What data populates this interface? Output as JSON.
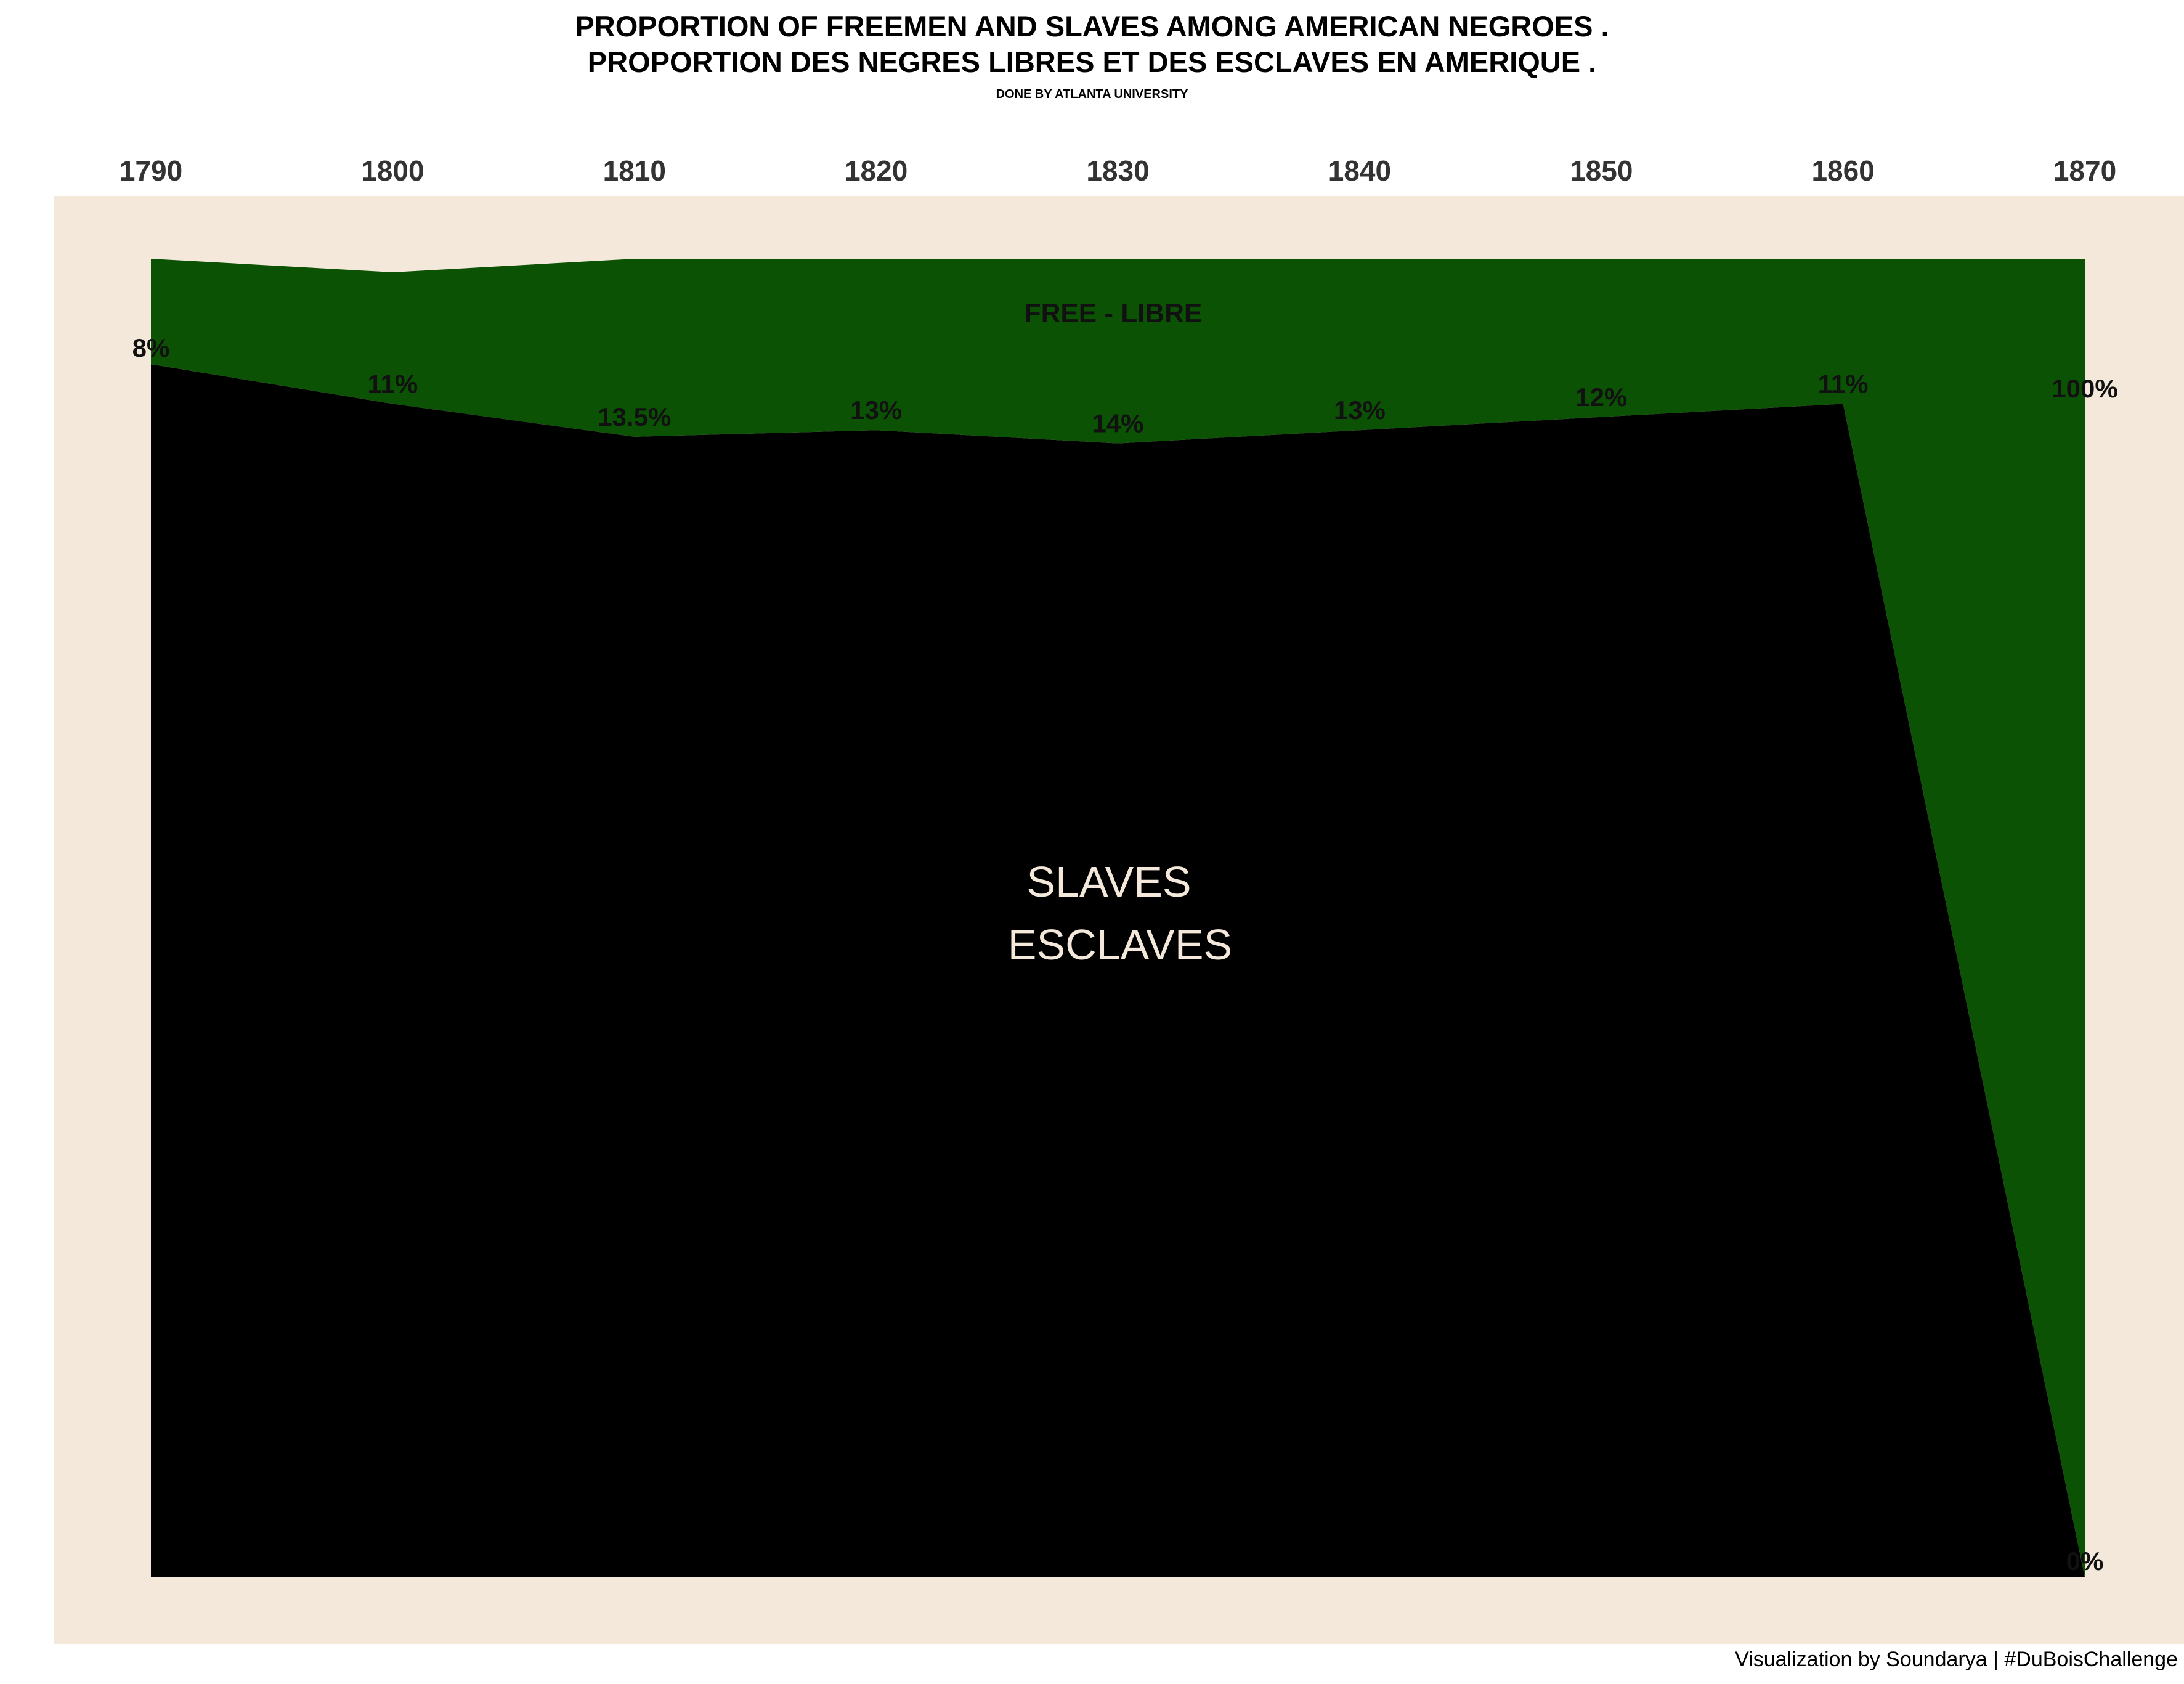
{
  "title": {
    "line1": "PROPORTION OF FREEMEN AND SLAVES AMONG AMERICAN NEGROES .",
    "line2": "PROPORTION DES NEGRES LIBRES ET DES ESCLAVES EN AMERIQUE .",
    "subtitle": "DONE BY ATLANTA UNIVERSITY"
  },
  "credit": "Visualization by Soundarya | #DuBoisChallenge",
  "colors": {
    "panel": "#f3e8da",
    "free": "#0c5205",
    "slaves": "#000000",
    "slaves_label": "#f3e8da"
  },
  "chart_data": {
    "type": "area",
    "x": [
      1790,
      1800,
      1810,
      1820,
      1830,
      1840,
      1850,
      1860,
      1870
    ],
    "x_tick_labels": [
      "1790",
      "1800",
      "1810",
      "1820",
      "1830",
      "1840",
      "1850",
      "1860",
      "1870"
    ],
    "free_percent": [
      8,
      11,
      13.5,
      13,
      14,
      13,
      12,
      11,
      100
    ],
    "free_percent_labels": [
      "8%",
      "11%",
      "13.5%",
      "13%",
      "14%",
      "13%",
      "12%",
      "11%",
      "100%"
    ],
    "slave_end_label": "0%",
    "region_labels": {
      "free": "FREE - LIBRE",
      "slaves_line1": "SLAVES",
      "slaves_line2": "ESCLAVES"
    },
    "xlabel": "",
    "ylabel": "",
    "ylim": [
      0,
      100
    ],
    "x_axis_position": "top",
    "grid": false,
    "legend": "none"
  }
}
